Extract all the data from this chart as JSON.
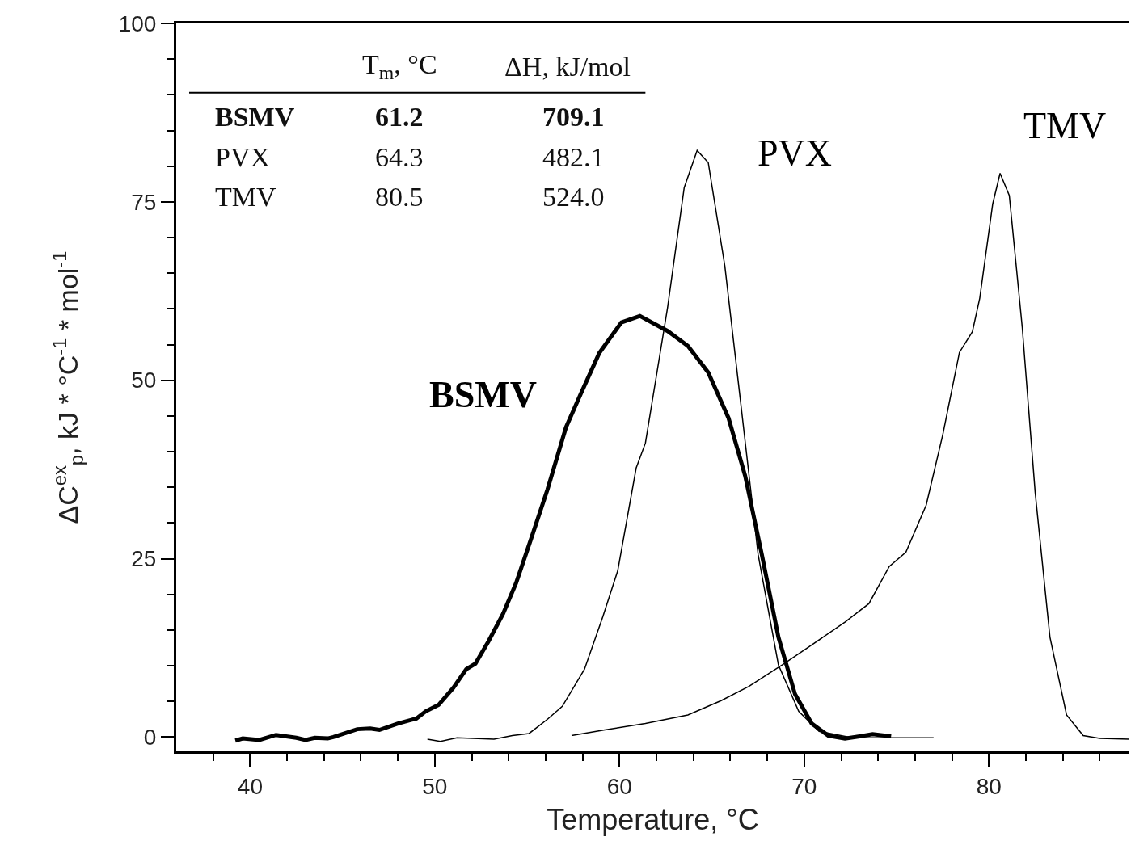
{
  "chart_data": {
    "type": "line",
    "xlabel": "Temperature, °C",
    "ylabel": "ΔC$^{ex}$$_{p}$, kJ * °C$^{-1}$ * mol$^{-1}$",
    "xlim": [
      36,
      87.6
    ],
    "ylim": [
      -2,
      100
    ],
    "xticks": [
      {
        "value": 38,
        "label": null
      },
      40,
      {
        "value": 42,
        "label": null
      },
      {
        "value": 44,
        "label": null
      },
      {
        "value": 46,
        "label": null
      },
      {
        "value": 48,
        "label": null
      },
      50,
      {
        "value": 52,
        "label": null
      },
      {
        "value": 54,
        "label": null
      },
      {
        "value": 56,
        "label": null
      },
      {
        "value": 58,
        "label": null
      },
      60,
      {
        "value": 62,
        "label": null
      },
      {
        "value": 64,
        "label": null
      },
      {
        "value": 66,
        "label": null
      },
      {
        "value": 68,
        "label": null
      },
      70,
      {
        "value": 72,
        "label": null
      },
      {
        "value": 74,
        "label": null
      },
      {
        "value": 76,
        "label": null
      },
      {
        "value": 78,
        "label": null
      },
      80,
      {
        "value": 82,
        "label": null
      },
      {
        "value": 84,
        "label": null
      },
      {
        "value": 86,
        "label": null
      }
    ],
    "yticks": [
      0,
      {
        "value": 5,
        "label": null
      },
      {
        "value": 10,
        "label": null
      },
      {
        "value": 15,
        "label": null
      },
      {
        "value": 20,
        "label": null
      },
      25,
      {
        "value": 30,
        "label": null
      },
      {
        "value": 35,
        "label": null
      },
      {
        "value": 40,
        "label": null
      },
      {
        "value": 45,
        "label": null
      },
      50,
      {
        "value": 55,
        "label": null
      },
      {
        "value": 60,
        "label": null
      },
      {
        "value": 65,
        "label": null
      },
      {
        "value": 70,
        "label": null
      },
      75,
      {
        "value": 80,
        "label": null
      },
      {
        "value": 85,
        "label": null
      },
      {
        "value": 90,
        "label": null
      },
      {
        "value": 95,
        "label": null
      },
      100
    ],
    "marker": "none",
    "line_style": "solid",
    "series": [
      {
        "name": "BSMV",
        "color": "#000000",
        "x": [
          39.2,
          39.6,
          40.5,
          41.4,
          42.5,
          43.0,
          43.5,
          44.2,
          44.5,
          45.8,
          46.5,
          47.0,
          48.0,
          49.0,
          49.5,
          50.2,
          51.0,
          51.7,
          52.2,
          52.9,
          53.7,
          54.4,
          55.2,
          56.1,
          57.1,
          57.9,
          58.9,
          60.1,
          61.1,
          62.6,
          63.7,
          64.8,
          65.9,
          66.8,
          67.7,
          68.6,
          69.5,
          70.4,
          71.3,
          72.2,
          73.0,
          73.7,
          74.7
        ],
        "values": [
          -0.5,
          -0.2,
          -0.4,
          0.3,
          -0.1,
          -0.4,
          -0.1,
          -0.2,
          0.0,
          1.1,
          1.2,
          1.0,
          1.9,
          2.6,
          3.6,
          4.5,
          6.9,
          9.5,
          10.3,
          13.4,
          17.3,
          21.6,
          27.7,
          34.7,
          43.4,
          48.1,
          53.8,
          58.1,
          59.0,
          56.9,
          54.8,
          51.1,
          44.7,
          36.6,
          25.6,
          14.0,
          6.0,
          1.9,
          0.2,
          -0.2,
          0.1,
          0.4,
          0.1
        ]
      },
      {
        "name": "PVX",
        "color": "#000000",
        "x": [
          49.6,
          50.3,
          51.2,
          53.2,
          54.2,
          55.1,
          56.1,
          56.9,
          58.1,
          59.1,
          59.9,
          60.9,
          61.4,
          62.6,
          63.5,
          64.2,
          64.8,
          65.7,
          66.6,
          67.5,
          68.6,
          69.7,
          70.8,
          72.6,
          74.8,
          77.0
        ],
        "values": [
          -0.3,
          -0.6,
          -0.1,
          -0.3,
          0.2,
          0.5,
          2.5,
          4.3,
          9.5,
          16.9,
          23.3,
          37.7,
          41.2,
          60.2,
          77.0,
          82.2,
          80.5,
          66.0,
          45.9,
          25.6,
          10.1,
          3.6,
          0.8,
          -0.1,
          -0.1,
          -0.1
        ]
      },
      {
        "name": "TMV",
        "color": "#000000",
        "x": [
          57.4,
          59.2,
          61.4,
          63.7,
          65.5,
          67.0,
          68.8,
          70.4,
          72.2,
          73.5,
          74.6,
          75.5,
          76.6,
          77.5,
          78.4,
          79.1,
          79.5,
          80.2,
          80.6,
          81.1,
          81.8,
          82.5,
          83.3,
          84.2,
          85.1,
          86.0,
          87.6
        ],
        "values": [
          0.2,
          1.0,
          1.9,
          3.1,
          5.1,
          7.1,
          10.1,
          12.9,
          16.1,
          18.7,
          23.9,
          25.9,
          32.5,
          42.4,
          53.9,
          56.8,
          61.5,
          74.7,
          79.0,
          75.9,
          57.4,
          34.3,
          14.0,
          3.1,
          0.2,
          -0.2,
          -0.3
        ]
      }
    ],
    "annotations": [
      "T$_{m}$, °C",
      "ΔH, kJ/mol",
      "BSMV",
      "61.2",
      "709.1",
      "PVX",
      "64.3",
      "482.1",
      "TMV",
      "80.5",
      "524.0"
    ]
  }
}
